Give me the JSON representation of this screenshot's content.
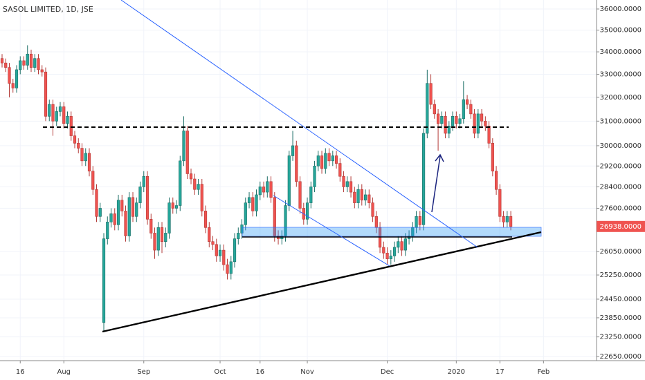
{
  "chart_data": {
    "type": "candlestick",
    "title": "SASOL LIMITED, 1D, JSE",
    "price_label": "26938.0000",
    "up_color": "#26a69a",
    "down_color": "#ef5350",
    "grid": true,
    "log_scale": true,
    "ylim": [
      22525,
      36434
    ],
    "yticks": [
      {
        "value": 36000,
        "label": "36000.0000"
      },
      {
        "value": 35000,
        "label": "35000.0000"
      },
      {
        "value": 34000,
        "label": "34000.0000"
      },
      {
        "value": 33000,
        "label": "33000.0000"
      },
      {
        "value": 32000,
        "label": "32000.0000"
      },
      {
        "value": 31000,
        "label": "31000.0000"
      },
      {
        "value": 30000,
        "label": "30000.0000"
      },
      {
        "value": 29200,
        "label": "29200.0000"
      },
      {
        "value": 28400,
        "label": "28400.0000"
      },
      {
        "value": 27600,
        "label": "27600.0000"
      },
      {
        "value": 26050,
        "label": "26050.0000"
      },
      {
        "value": 25250,
        "label": "25250.0000"
      },
      {
        "value": 24450,
        "label": "24450.0000"
      },
      {
        "value": 23850,
        "label": "23850.0000"
      },
      {
        "value": 23250,
        "label": "23250.0000"
      },
      {
        "value": 22650,
        "label": "22650.0000"
      }
    ],
    "xlim": [
      -0.57,
      163.6
    ],
    "xticks": [
      {
        "value": 5,
        "label": "16"
      },
      {
        "value": 17,
        "label": "Aug"
      },
      {
        "value": 39,
        "label": "Sep"
      },
      {
        "value": 60,
        "label": "Oct"
      },
      {
        "value": 71,
        "label": "16"
      },
      {
        "value": 84,
        "label": "Nov"
      },
      {
        "value": 106,
        "label": "Dec"
      },
      {
        "value": 125,
        "label": "2020"
      },
      {
        "value": 137,
        "label": "17"
      },
      {
        "value": 149,
        "label": "Feb"
      }
    ],
    "open": [
      33700,
      33500,
      33300,
      32600,
      32400,
      33200,
      33600,
      33400,
      33900,
      33300,
      33700,
      33200,
      33100,
      31200,
      31700,
      31000,
      31400,
      31600,
      30900,
      31200,
      30400,
      30100,
      29900,
      29400,
      29700,
      29000,
      28300,
      27300,
      23700,
      26500,
      27100,
      27400,
      27000,
      27900,
      27500,
      26600,
      28000,
      27300,
      27800,
      28400,
      28800,
      27200,
      26700,
      26100,
      26900,
      26400,
      26700,
      27800,
      27600,
      27700,
      29400,
      30600,
      28900,
      28700,
      28300,
      28500,
      27500,
      26900,
      26400,
      26300,
      25900,
      26100,
      25600,
      25300,
      25700,
      26500,
      26700,
      27000,
      27800,
      28000,
      27500,
      28100,
      28400,
      28200,
      28600,
      28000,
      26600,
      26500,
      26600,
      27700,
      29600,
      30000,
      28600,
      27600,
      27200,
      27800,
      28400,
      29200,
      29600,
      29100,
      29700,
      29400,
      29600,
      29300,
      28800,
      28400,
      28600,
      28200,
      27800,
      28300,
      27900,
      28100,
      27800,
      27300,
      26900,
      26200,
      26000,
      25800,
      25900,
      26200,
      26400,
      26100,
      26500,
      26600,
      26900,
      27300,
      27000,
      30500,
      32600,
      31700,
      31300,
      30900,
      31200,
      30500,
      30800,
      31200,
      30900,
      31100,
      31900,
      31700,
      31300,
      30500,
      31300,
      31000,
      30800,
      30100,
      29000,
      28300,
      27300,
      27100,
      27300
    ],
    "high": [
      33900,
      33700,
      33500,
      32800,
      33400,
      33800,
      33800,
      34300,
      34100,
      33900,
      33900,
      33400,
      33300,
      31900,
      31900,
      31600,
      31800,
      31800,
      31400,
      31400,
      30600,
      30300,
      30100,
      29900,
      29900,
      29200,
      28500,
      27800,
      26700,
      27300,
      27600,
      27600,
      28100,
      28100,
      27700,
      28200,
      28200,
      28000,
      28600,
      29000,
      29000,
      27400,
      26900,
      27100,
      27100,
      26900,
      28000,
      28000,
      27900,
      29600,
      31200,
      30800,
      29100,
      28900,
      28700,
      28700,
      27700,
      27100,
      26600,
      26500,
      26300,
      26300,
      25800,
      25900,
      26700,
      26900,
      27200,
      28000,
      28200,
      28200,
      28300,
      28600,
      28600,
      28800,
      28800,
      28200,
      26800,
      26800,
      27900,
      29800,
      30600,
      30200,
      28800,
      27800,
      28000,
      28600,
      29400,
      29800,
      29800,
      29900,
      29900,
      29800,
      29800,
      29500,
      29000,
      28800,
      28800,
      28400,
      28500,
      28500,
      28300,
      28300,
      28000,
      27500,
      27100,
      26400,
      26200,
      26100,
      26400,
      26600,
      26600,
      26700,
      26800,
      27100,
      27500,
      27500,
      30700,
      33200,
      33000,
      31900,
      31500,
      31400,
      31400,
      31000,
      31400,
      31400,
      31300,
      32700,
      32100,
      31900,
      31500,
      31500,
      31500,
      31200,
      31000,
      30300,
      29200,
      28500,
      27500,
      27500,
      27500
    ],
    "low": [
      33300,
      33100,
      32000,
      32200,
      32200,
      33000,
      33200,
      33200,
      33100,
      33100,
      33000,
      32900,
      31000,
      31000,
      30400,
      30800,
      31200,
      30700,
      30700,
      30200,
      29900,
      29700,
      29200,
      29200,
      28800,
      28100,
      27100,
      27100,
      23400,
      26300,
      26900,
      26800,
      26800,
      27300,
      26400,
      26400,
      27100,
      27100,
      27600,
      28200,
      27000,
      26500,
      25800,
      25900,
      26000,
      26200,
      26500,
      27400,
      27400,
      27500,
      29200,
      28700,
      28500,
      28100,
      28100,
      27300,
      26700,
      26200,
      26100,
      25700,
      25700,
      25400,
      25100,
      25100,
      25500,
      26300,
      26500,
      26800,
      27600,
      27300,
      27300,
      27900,
      28000,
      28000,
      27800,
      26400,
      26300,
      26300,
      26400,
      27500,
      29400,
      28400,
      27400,
      27000,
      27000,
      27600,
      28200,
      29000,
      28900,
      28900,
      29200,
      29200,
      29100,
      28600,
      28200,
      28200,
      28000,
      27600,
      27600,
      27700,
      27700,
      27600,
      27100,
      26700,
      26000,
      25800,
      25600,
      25600,
      25700,
      26000,
      25900,
      25900,
      26300,
      26400,
      26700,
      26800,
      26800,
      30300,
      31500,
      31100,
      29800,
      30700,
      30300,
      30300,
      30600,
      30700,
      30700,
      30900,
      31500,
      31100,
      30300,
      30300,
      30800,
      30600,
      29900,
      28800,
      28100,
      27100,
      26900,
      26900,
      26800
    ],
    "close": [
      33500,
      33300,
      32600,
      32400,
      33200,
      33600,
      33400,
      33900,
      33300,
      33700,
      33200,
      33100,
      31200,
      31700,
      31000,
      31400,
      31600,
      30900,
      31200,
      30400,
      30100,
      29900,
      29400,
      29700,
      29000,
      28300,
      27300,
      27600,
      26500,
      27100,
      27400,
      27000,
      27900,
      27500,
      26600,
      28000,
      27300,
      27800,
      28400,
      28800,
      27200,
      26700,
      26100,
      26900,
      26400,
      26700,
      27800,
      27600,
      27700,
      29400,
      30600,
      28900,
      28700,
      28300,
      28500,
      27500,
      26900,
      26400,
      26300,
      25900,
      26100,
      25600,
      25300,
      25700,
      26500,
      26700,
      27000,
      27800,
      28000,
      27500,
      28100,
      28400,
      28200,
      28600,
      28000,
      26600,
      26500,
      26600,
      27700,
      29600,
      30000,
      28600,
      27600,
      27200,
      27800,
      28400,
      29200,
      29600,
      29100,
      29700,
      29400,
      29600,
      29300,
      28800,
      28400,
      28600,
      28200,
      27800,
      28300,
      27900,
      28100,
      27800,
      27300,
      26900,
      26200,
      26000,
      25800,
      25900,
      26200,
      26400,
      26100,
      26500,
      26600,
      26900,
      27300,
      27000,
      30500,
      32600,
      31700,
      31300,
      30900,
      31200,
      30500,
      30800,
      31200,
      30900,
      31100,
      31900,
      31700,
      31300,
      30500,
      31300,
      31000,
      30800,
      30100,
      29000,
      28300,
      27300,
      27100,
      27300,
      26938
    ]
  }
}
